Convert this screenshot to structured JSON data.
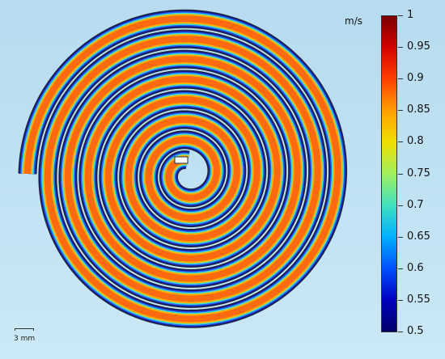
{
  "figure": {
    "scale_bar_label": "3 mm",
    "colorbar": {
      "unit_label": "m/s",
      "tick_labels": [
        "1",
        "0.95",
        "0.9",
        "0.85",
        "0.8",
        "0.75",
        "0.7",
        "0.65",
        "0.6",
        "0.55",
        "0.5"
      ],
      "min": 0.5,
      "max": 1,
      "colormap": [
        "#7a0000",
        "#d40000",
        "#ff4000",
        "#ffa000",
        "#f0e000",
        "#a0f060",
        "#40e0c0",
        "#00b0ff",
        "#0050ff",
        "#0000c0",
        "#00006a"
      ]
    },
    "channel_colors": {
      "edge": "#1a1a80",
      "edge_inner": "#2060ff",
      "mid": "#40e0d0",
      "core_outer": "#ffb000",
      "core": "#ff6a10",
      "outline": "#1b2b3b"
    }
  }
}
